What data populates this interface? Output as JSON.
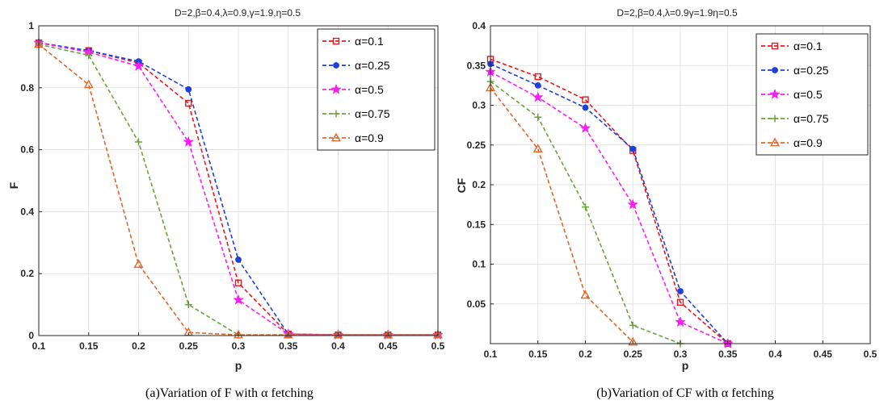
{
  "chart_data": [
    {
      "type": "line",
      "title": "D=2,β=0.4,λ=0.9,γ=1.9,η=0.5",
      "xlabel": "p",
      "ylabel": "F",
      "caption": "(a)Variation of F with α fetching",
      "x": [
        0.1,
        0.15,
        0.2,
        0.25,
        0.3,
        0.35,
        0.4,
        0.45,
        0.5
      ],
      "xlim": [
        0.1,
        0.5
      ],
      "ylim": [
        0,
        1
      ],
      "xticks": [
        "0.1",
        "0.15",
        "0.2",
        "0.25",
        "0.3",
        "0.35",
        "0.4",
        "0.45",
        "0.5"
      ],
      "yticks": [
        "0",
        "0.2",
        "0.4",
        "0.6",
        "0.8",
        "1"
      ],
      "ytick_values": [
        0,
        0.2,
        0.4,
        0.6,
        0.8,
        1
      ],
      "grid": true,
      "legend_position": "top-right",
      "series": [
        {
          "name": "α=0.1",
          "color": "#e8171d",
          "marker": "square",
          "values": [
            0.945,
            0.92,
            0.88,
            0.75,
            0.17,
            0.005,
            0.002,
            0.002,
            0.002
          ]
        },
        {
          "name": "α=0.25",
          "color": "#1f3fd8",
          "marker": "dot",
          "values": [
            0.945,
            0.92,
            0.885,
            0.795,
            0.245,
            0.005,
            0.002,
            0.002,
            0.002
          ]
        },
        {
          "name": "α=0.5",
          "color": "#f51ff2",
          "marker": "star",
          "values": [
            0.945,
            0.915,
            0.87,
            0.625,
            0.115,
            0.005,
            0.002,
            0.002,
            0.002
          ]
        },
        {
          "name": "α=0.75",
          "color": "#6aa43c",
          "marker": "plus",
          "values": [
            0.94,
            0.905,
            0.625,
            0.1,
            0.002,
            0.002,
            0.002,
            0.002,
            0.002
          ]
        },
        {
          "name": "α=0.9",
          "color": "#e0662a",
          "marker": "triangle",
          "values": [
            0.94,
            0.81,
            0.23,
            0.01,
            0.002,
            0.002,
            0.002,
            0.002,
            0.002
          ]
        }
      ]
    },
    {
      "type": "line",
      "title": "D=2,β=0.4,λ=0.9γ=1.9η=0.5",
      "xlabel": "p",
      "ylabel": "CF",
      "caption": "(b)Variation of CF with α fetching",
      "x": [
        0.1,
        0.15,
        0.2,
        0.25,
        0.3,
        0.35
      ],
      "xlim": [
        0.1,
        0.5
      ],
      "ylim": [
        0,
        0.4
      ],
      "xticks": [
        "0.1",
        "0.15",
        "0.2",
        "0.25",
        "0.3",
        "0.35",
        "0.4",
        "0.45",
        "0.5"
      ],
      "yticks": [
        "0.05",
        "0.1",
        "0.15",
        "0.2",
        "0.25",
        "0.3",
        "0.35",
        "0.4"
      ],
      "ytick_values": [
        0.05,
        0.1,
        0.15,
        0.2,
        0.25,
        0.3,
        0.35,
        0.4
      ],
      "grid": true,
      "legend_position": "top-right",
      "series": [
        {
          "name": "α=0.1",
          "color": "#e8171d",
          "marker": "square",
          "values": [
            0.358,
            0.336,
            0.307,
            0.243,
            0.052,
            0.0
          ]
        },
        {
          "name": "α=0.25",
          "color": "#1f3fd8",
          "marker": "dot",
          "values": [
            0.352,
            0.325,
            0.297,
            0.245,
            0.066,
            0.0
          ]
        },
        {
          "name": "α=0.5",
          "color": "#f51ff2",
          "marker": "star",
          "values": [
            0.342,
            0.31,
            0.271,
            0.175,
            0.027,
            0.0
          ]
        },
        {
          "name": "α=0.75",
          "color": "#6aa43c",
          "marker": "plus",
          "values": [
            0.33,
            0.285,
            0.172,
            0.023,
            0.0,
            null
          ]
        },
        {
          "name": "α=0.9",
          "color": "#e0662a",
          "marker": "triangle",
          "values": [
            0.322,
            0.245,
            0.061,
            0.002,
            null,
            null
          ]
        }
      ]
    }
  ]
}
